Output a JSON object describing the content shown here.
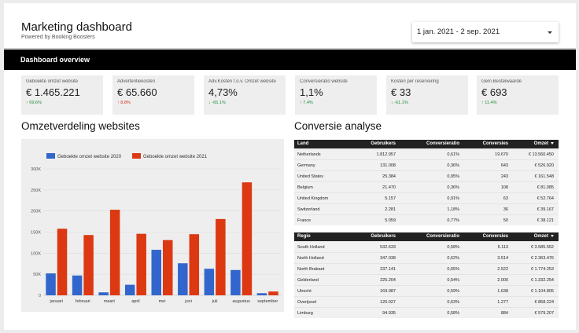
{
  "header": {
    "title": "Marketing dashboard",
    "subtitle": "Powered by Booking Boosters",
    "date_range": "1 jan. 2021 - 2 sep. 2021"
  },
  "banner": {
    "label": "Dashboard overview"
  },
  "kpis": [
    {
      "label": "Geboekte omzet website",
      "value": "€ 1.465.221",
      "change": "69.6%",
      "direction": "up",
      "color": "#1e8e3e"
    },
    {
      "label": "Advertentiekosten",
      "value": "€ 65.660",
      "change": "8.8%",
      "direction": "up",
      "color": "#d93025"
    },
    {
      "label": "Adv.Kosten t.o.v. Omzet website",
      "value": "4,73%",
      "change": "-65.1%",
      "direction": "down",
      "color": "#1e8e3e"
    },
    {
      "label": "Conversieratio website",
      "value": "1,1%",
      "change": "7.4%",
      "direction": "up",
      "color": "#1e8e3e"
    },
    {
      "label": "Kosten per reservering",
      "value": "€ 33",
      "change": "-61.1%",
      "direction": "down",
      "color": "#1e8e3e"
    },
    {
      "label": "Gem.Bestelwaarde",
      "value": "€ 693",
      "change": "11.4%",
      "direction": "up",
      "color": "#1e8e3e"
    }
  ],
  "sections": {
    "left_title": "Omzetverdeling websites",
    "right_title": "Conversie analyse"
  },
  "chart_data": {
    "type": "bar",
    "categories": [
      "januari",
      "februari",
      "maart",
      "april",
      "mei",
      "juni",
      "juli",
      "augustus",
      "september"
    ],
    "series": [
      {
        "name": "Geboekte omzet website 2020",
        "color": "#3366cc",
        "values": [
          52000,
          47000,
          7000,
          25000,
          108000,
          76000,
          63000,
          60000,
          5000
        ]
      },
      {
        "name": "Geboekte omzet website 2021",
        "color": "#dc3912",
        "values": [
          158000,
          143000,
          203000,
          146000,
          131000,
          145000,
          181000,
          268000,
          9000
        ]
      }
    ],
    "yticks": [
      "0",
      "50K",
      "100K",
      "150K",
      "200K",
      "250K",
      "300K"
    ],
    "ylim": [
      0,
      300000
    ],
    "grid": true,
    "legend": "top"
  },
  "countries_table": {
    "columns": [
      "Land",
      "Gebruikers",
      "Conversieratio",
      "Conversies",
      "Omzet"
    ],
    "rows": [
      [
        "Netherlands",
        "1.812.957",
        "0,61%",
        "19.670",
        "€ 13.560.450"
      ],
      [
        "Germany",
        "131.008",
        "0,36%",
        "643",
        "€ 526.920"
      ],
      [
        "United States",
        "25.384",
        "0,95%",
        "243",
        "€ 161.548"
      ],
      [
        "Belgium",
        "21.470",
        "0,36%",
        "108",
        "€ 81.085"
      ],
      [
        "United Kingdom",
        "5.157",
        "0,91%",
        "63",
        "€ 52.764"
      ],
      [
        "Switzerland",
        "2.281",
        "1,18%",
        "36",
        "€ 39.167"
      ],
      [
        "France",
        "5.059",
        "0,77%",
        "50",
        "€ 38.121"
      ]
    ]
  },
  "regions_table": {
    "columns": [
      "Regio",
      "Gebruikers",
      "Conversieratio",
      "Conversies",
      "Omzet"
    ],
    "rows": [
      [
        "South Holland",
        "532.633",
        "0,58%",
        "5.113",
        "€ 3.585.552"
      ],
      [
        "North Holland",
        "347.038",
        "0,62%",
        "3.514",
        "€ 2.363.476"
      ],
      [
        "North Brabant",
        "237.141",
        "0,65%",
        "2.522",
        "€ 1.774.253"
      ],
      [
        "Gelderland",
        "225.204",
        "0,54%",
        "2.000",
        "€ 1.332.254"
      ],
      [
        "Utrecht",
        "169.987",
        "0,59%",
        "1.638",
        "€ 1.104.805"
      ],
      [
        "Overijssel",
        "120.027",
        "0,63%",
        "1.277",
        "€ 858.224"
      ],
      [
        "Limburg",
        "94.935",
        "0,58%",
        "884",
        "€ 579.207"
      ]
    ]
  }
}
